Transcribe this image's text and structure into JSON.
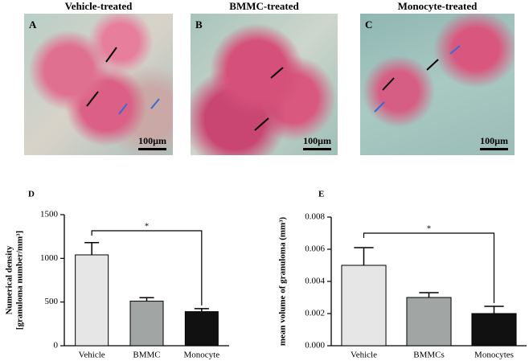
{
  "panels": [
    {
      "label": "A",
      "title": "Vehicle-treated",
      "scale": "100µm"
    },
    {
      "label": "B",
      "title": "BMMC-treated",
      "scale": "100µm"
    },
    {
      "label": "C",
      "title": "Monocyte-treated",
      "scale": "100µm"
    }
  ],
  "chart_data": [
    {
      "type": "bar",
      "panel_label": "D",
      "y_label": [
        "Numerical density",
        "[granuloma number/mm³]"
      ],
      "categories": [
        "Vehicle",
        "BMMC",
        "Monocyte"
      ],
      "values": [
        1040,
        510,
        390
      ],
      "errors": [
        140,
        40,
        35
      ],
      "colors": [
        "#e6e6e6",
        "#a1a5a4",
        "#111111"
      ],
      "ylim": [
        0,
        1500
      ],
      "yticks": [
        0,
        500,
        1000,
        1500
      ],
      "annotation": "*"
    },
    {
      "type": "bar",
      "panel_label": "E",
      "y_label": [
        "mean volume of granuloma (mm³)"
      ],
      "categories": [
        "Vehicle",
        "BMMCs",
        "Monocytes"
      ],
      "values": [
        0.005,
        0.003,
        0.002
      ],
      "errors": [
        0.0011,
        0.0003,
        0.00045
      ],
      "colors": [
        "#e6e6e6",
        "#a1a5a4",
        "#111111"
      ],
      "ylim": [
        0,
        0.008
      ],
      "yticks": [
        {
          "value": 0,
          "label": "0.000"
        },
        {
          "value": 0.002,
          "label": "0.002"
        },
        {
          "value": 0.004,
          "label": "0.004"
        },
        {
          "value": 0.006,
          "label": "0.006"
        },
        {
          "value": 0.008,
          "label": "0.008"
        }
      ],
      "annotation": "*"
    }
  ]
}
